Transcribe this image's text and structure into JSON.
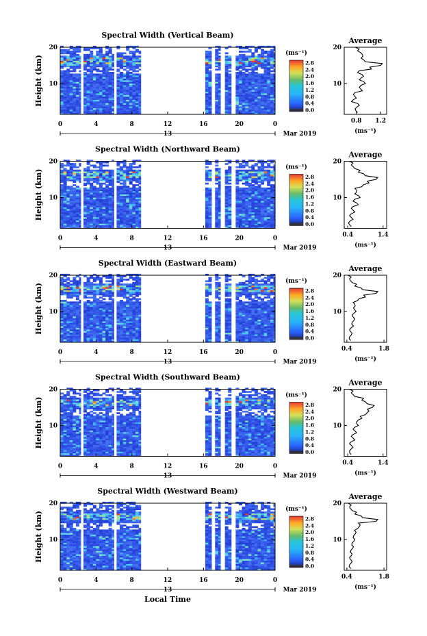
{
  "figure": {
    "xlabel": "Local Time",
    "ylabel": "Height (km)",
    "date_label": "Mar 2019",
    "day_label": "13",
    "colorbar_unit": "(ms⁻¹)",
    "average_title": "Average",
    "average_xunit": "(ms⁻¹)"
  },
  "chart_data": [
    {
      "type": "heatmap",
      "title": "Spectral Width (Vertical Beam)",
      "x_ticks": [
        "0",
        "4",
        "8",
        "12",
        "16",
        "20",
        "0"
      ],
      "y_ticks": [
        "20",
        "10"
      ],
      "colorbar_ticks": [
        "2.8",
        "2.4",
        "2.0",
        "1.6",
        "1.2",
        "0.8",
        "0.4",
        "0.0"
      ],
      "avg_xticks": [
        "0.8",
        "1.2"
      ],
      "avg_xlim": [
        0.6,
        1.3
      ],
      "avg_profile": [
        [
          0.82,
          2
        ],
        [
          0.78,
          3
        ],
        [
          0.85,
          4
        ],
        [
          0.72,
          5
        ],
        [
          0.8,
          6
        ],
        [
          0.75,
          7
        ],
        [
          0.9,
          8
        ],
        [
          0.85,
          9
        ],
        [
          0.95,
          10
        ],
        [
          0.85,
          11
        ],
        [
          0.92,
          12
        ],
        [
          0.82,
          13
        ],
        [
          1.05,
          14
        ],
        [
          1.2,
          15
        ],
        [
          0.95,
          16
        ],
        [
          0.88,
          17
        ],
        [
          0.9,
          18
        ],
        [
          0.82,
          19
        ],
        [
          0.78,
          20
        ]
      ]
    },
    {
      "type": "heatmap",
      "title": "Spectral Width (Northward Beam)",
      "x_ticks": [
        "0",
        "4",
        "8",
        "12",
        "16",
        "20",
        "0"
      ],
      "y_ticks": [
        "20",
        "10"
      ],
      "colorbar_ticks": [
        "2.8",
        "2.4",
        "2.0",
        "1.6",
        "1.2",
        "0.8",
        "0.4",
        "0.0"
      ],
      "avg_xticks": [
        "0.4",
        "1.4"
      ],
      "avg_xlim": [
        0.3,
        1.5
      ],
      "avg_profile": [
        [
          0.5,
          2
        ],
        [
          0.42,
          3
        ],
        [
          0.55,
          4
        ],
        [
          0.45,
          5
        ],
        [
          0.6,
          6
        ],
        [
          0.5,
          7
        ],
        [
          0.7,
          8
        ],
        [
          0.55,
          9
        ],
        [
          0.75,
          10
        ],
        [
          0.6,
          11
        ],
        [
          0.65,
          12
        ],
        [
          0.8,
          13
        ],
        [
          1.0,
          14
        ],
        [
          1.2,
          15
        ],
        [
          0.9,
          16
        ],
        [
          0.7,
          17
        ],
        [
          0.6,
          18
        ],
        [
          0.5,
          19
        ],
        [
          0.45,
          20
        ]
      ]
    },
    {
      "type": "heatmap",
      "title": "Spectral Width (Eastward Beam)",
      "x_ticks": [
        "0",
        "4",
        "8",
        "12",
        "16",
        "20",
        "0"
      ],
      "y_ticks": [
        "20",
        "10"
      ],
      "colorbar_ticks": [
        "2.8",
        "2.4",
        "2.0",
        "1.6",
        "1.2",
        "0.8",
        "0.4",
        "0.0"
      ],
      "avg_xticks": [
        "0.4",
        "1.8"
      ],
      "avg_xlim": [
        0.3,
        1.9
      ],
      "avg_profile": [
        [
          0.55,
          2
        ],
        [
          0.5,
          3
        ],
        [
          0.6,
          4
        ],
        [
          0.5,
          5
        ],
        [
          0.65,
          6
        ],
        [
          0.6,
          7
        ],
        [
          0.7,
          8
        ],
        [
          0.6,
          9
        ],
        [
          0.75,
          10
        ],
        [
          0.65,
          11
        ],
        [
          0.7,
          12
        ],
        [
          0.8,
          13
        ],
        [
          1.1,
          14
        ],
        [
          1.5,
          15
        ],
        [
          1.0,
          16
        ],
        [
          0.7,
          17
        ],
        [
          0.6,
          18
        ],
        [
          0.5,
          19
        ],
        [
          0.45,
          20
        ]
      ]
    },
    {
      "type": "heatmap",
      "title": "Spectral Width (Southward Beam)",
      "x_ticks": [
        "0",
        "4",
        "8",
        "12",
        "16",
        "20",
        "0"
      ],
      "y_ticks": [
        "20",
        "10"
      ],
      "colorbar_ticks": [
        "2.8",
        "2.4",
        "2.0",
        "1.6",
        "1.2",
        "0.8",
        "0.4",
        "0.0"
      ],
      "avg_xticks": [
        "0.4",
        "1.4"
      ],
      "avg_xlim": [
        0.3,
        1.5
      ],
      "avg_profile": [
        [
          0.5,
          2
        ],
        [
          0.45,
          3
        ],
        [
          0.55,
          4
        ],
        [
          0.45,
          5
        ],
        [
          0.6,
          6
        ],
        [
          0.5,
          7
        ],
        [
          0.65,
          8
        ],
        [
          0.55,
          9
        ],
        [
          0.7,
          10
        ],
        [
          0.65,
          11
        ],
        [
          0.8,
          12
        ],
        [
          0.9,
          13
        ],
        [
          1.0,
          14
        ],
        [
          1.1,
          15
        ],
        [
          0.95,
          16
        ],
        [
          0.8,
          17
        ],
        [
          0.6,
          18
        ],
        [
          0.5,
          19
        ],
        [
          0.45,
          20
        ]
      ]
    },
    {
      "type": "heatmap",
      "title": "Spectral Width (Westward Beam)",
      "x_ticks": [
        "0",
        "4",
        "8",
        "12",
        "16",
        "20",
        "0"
      ],
      "y_ticks": [
        "20",
        "10"
      ],
      "colorbar_ticks": [
        "2.8",
        "2.4",
        "2.0",
        "1.6",
        "1.2",
        "0.8",
        "0.4",
        "0.0"
      ],
      "avg_xticks": [
        "0.4",
        "1.8"
      ],
      "avg_xlim": [
        0.3,
        1.9
      ],
      "avg_profile": [
        [
          0.55,
          2
        ],
        [
          0.5,
          3
        ],
        [
          0.6,
          4
        ],
        [
          0.5,
          5
        ],
        [
          0.6,
          6
        ],
        [
          0.55,
          7
        ],
        [
          0.65,
          8
        ],
        [
          0.6,
          9
        ],
        [
          0.7,
          10
        ],
        [
          0.65,
          11
        ],
        [
          0.75,
          12
        ],
        [
          0.8,
          13
        ],
        [
          0.9,
          14
        ],
        [
          1.5,
          15
        ],
        [
          1.0,
          16
        ],
        [
          0.7,
          17
        ],
        [
          0.6,
          18
        ],
        [
          0.5,
          19
        ],
        [
          0.45,
          20
        ]
      ]
    }
  ]
}
